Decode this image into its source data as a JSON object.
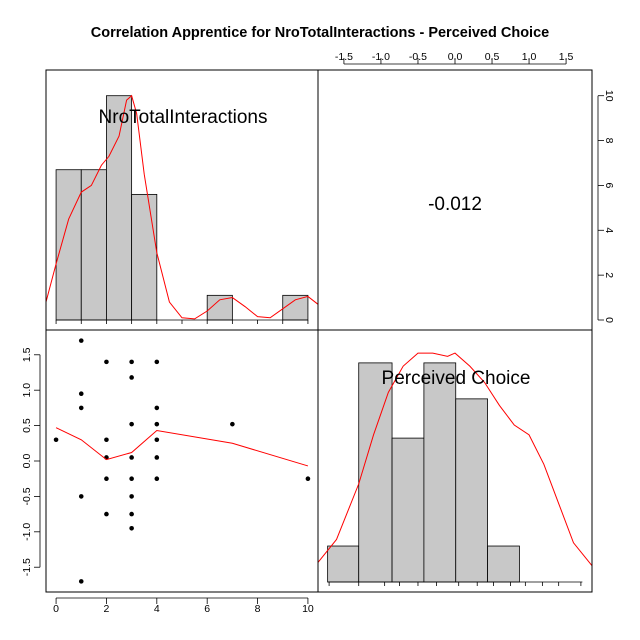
{
  "chart_data": {
    "type": "scatter-matrix",
    "title": "Correlation Apprentice for NroTotalInteractions - Perceived Choice",
    "variables": [
      "NroTotalInteractions",
      "Perceived Choice"
    ],
    "correlation_label": "-0.012",
    "colors": {
      "density": "#ff0000",
      "bar_fill": "#c8c8c8",
      "points": "#000000"
    },
    "axes": {
      "top_ticks": [
        "-1.5",
        "-1.0",
        "-0.5",
        "0.0",
        "0.5",
        "1.0",
        "1.5"
      ],
      "right_ticks": [
        "0",
        "2",
        "4",
        "6",
        "8",
        "10"
      ],
      "left_ticks": [
        "-1.5",
        "-1.0",
        "-0.5",
        "0.0",
        "0.5",
        "1.0",
        "1.5"
      ],
      "bottom_ticks": [
        "0",
        "2",
        "4",
        "6",
        "8",
        "10"
      ]
    },
    "ranges": {
      "x": [
        -0.4,
        10.4
      ],
      "y": [
        -1.85,
        1.85
      ]
    },
    "hist_x": {
      "breaks": [
        0,
        1,
        2,
        3,
        4,
        5,
        6,
        7,
        8,
        9,
        10
      ],
      "heights": [
        6.7,
        6.7,
        10,
        5.6,
        0,
        0,
        1.1,
        0,
        0,
        1.1
      ],
      "ymax": 10.7
    },
    "hist_y": {
      "breaks": [
        -1.72,
        -1.3,
        -0.85,
        -0.42,
        0.01,
        0.44,
        0.87,
        1.3,
        1.72
      ],
      "heights": [
        1.1,
        6.7,
        4.4,
        6.7,
        5.6,
        1.1,
        0,
        0
      ],
      "ymax": 7.4
    },
    "density_x": {
      "x": [
        -0.4,
        0,
        0.5,
        1,
        1.4,
        1.8,
        2.1,
        2.5,
        2.8,
        3.0,
        3.2,
        3.5,
        4.0,
        4.5,
        5.0,
        5.5,
        6.0,
        6.5,
        7.0,
        7.5,
        8.0,
        8.5,
        9.0,
        9.5,
        10.0,
        10.4
      ],
      "y": [
        0.8,
        2.5,
        4.5,
        5.7,
        6.0,
        6.9,
        7.3,
        8.2,
        9.8,
        10.0,
        9.2,
        6.5,
        3.0,
        0.8,
        0.1,
        0.05,
        0.4,
        0.9,
        1.0,
        0.6,
        0.15,
        0.1,
        0.5,
        0.9,
        1.05,
        0.7
      ]
    },
    "density_y": {
      "x": [
        -1.85,
        -1.6,
        -1.3,
        -1.1,
        -0.9,
        -0.7,
        -0.5,
        -0.3,
        -0.1,
        0.0,
        0.2,
        0.4,
        0.6,
        0.8,
        1.0,
        1.2,
        1.4,
        1.6,
        1.85
      ],
      "y": [
        0.6,
        1.3,
        3.0,
        4.5,
        5.8,
        6.6,
        7.0,
        7.0,
        6.9,
        7.0,
        6.6,
        6.1,
        5.4,
        4.8,
        4.5,
        3.6,
        2.4,
        1.2,
        0.5
      ]
    },
    "scatter": [
      {
        "x": 0,
        "y": 0.3
      },
      {
        "x": 1,
        "y": 1.7
      },
      {
        "x": 1,
        "y": 0.95
      },
      {
        "x": 1,
        "y": 0.75
      },
      {
        "x": 1,
        "y": -0.5
      },
      {
        "x": 1,
        "y": -1.7
      },
      {
        "x": 2,
        "y": 1.4
      },
      {
        "x": 2,
        "y": 0.3
      },
      {
        "x": 2,
        "y": 0.05
      },
      {
        "x": 2,
        "y": -0.25
      },
      {
        "x": 2,
        "y": -0.75
      },
      {
        "x": 3,
        "y": 1.4
      },
      {
        "x": 3,
        "y": 1.18
      },
      {
        "x": 3,
        "y": 0.52
      },
      {
        "x": 3,
        "y": 0.05
      },
      {
        "x": 3,
        "y": -0.25
      },
      {
        "x": 3,
        "y": -0.5
      },
      {
        "x": 3,
        "y": -0.75
      },
      {
        "x": 3,
        "y": -0.95
      },
      {
        "x": 4,
        "y": 1.4
      },
      {
        "x": 4,
        "y": 0.75
      },
      {
        "x": 4,
        "y": 0.52
      },
      {
        "x": 4,
        "y": 0.3
      },
      {
        "x": 4,
        "y": 0.05
      },
      {
        "x": 4,
        "y": -0.25
      },
      {
        "x": 7,
        "y": 0.52
      },
      {
        "x": 10,
        "y": -0.25
      }
    ],
    "smooth": {
      "x": [
        0,
        1,
        2,
        3,
        4,
        7,
        10
      ],
      "y": [
        0.47,
        0.3,
        0.02,
        0.12,
        0.43,
        0.25,
        -0.07
      ]
    }
  }
}
